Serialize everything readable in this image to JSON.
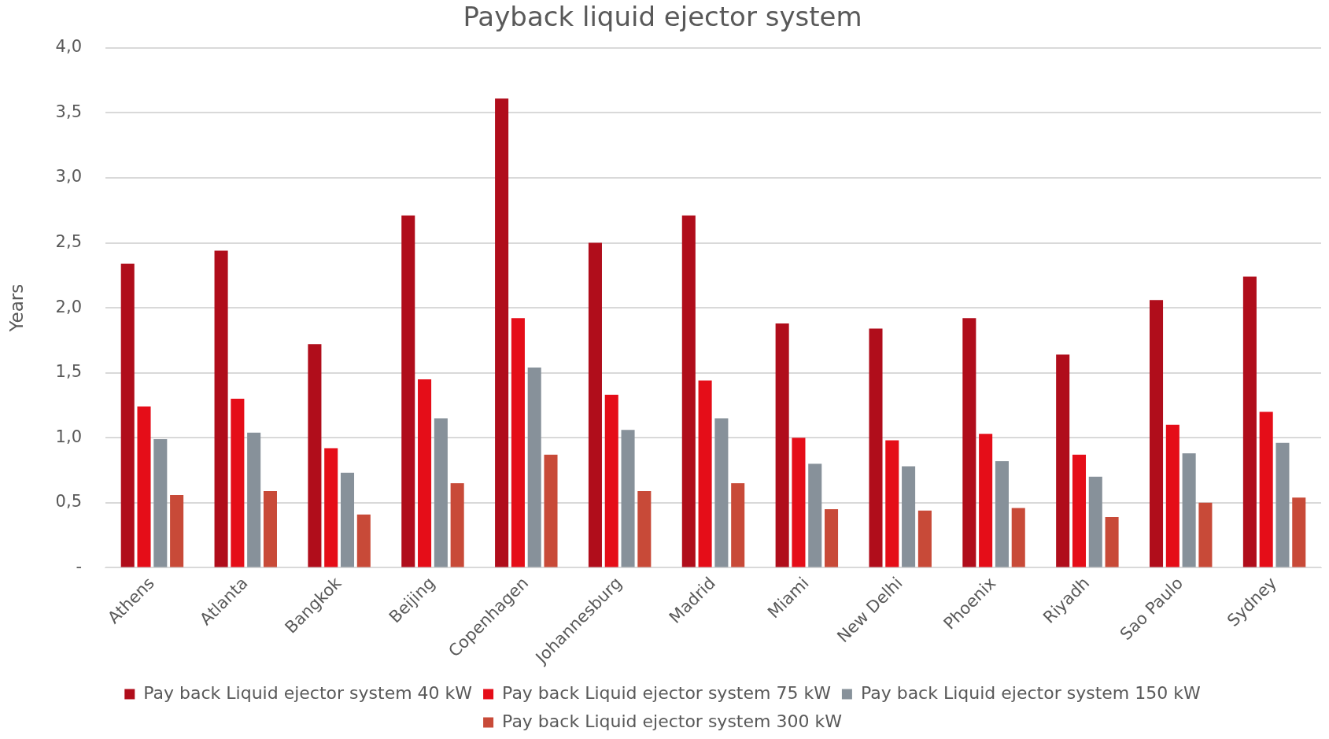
{
  "chart_data": {
    "type": "bar",
    "title": "Payback liquid ejector system",
    "ylabel": "Years",
    "categories": [
      "Athens",
      "Atlanta",
      "Bangkok",
      "Beijing",
      "Copenhagen",
      "Johannesburg",
      "Madrid",
      "Miami",
      "New Delhi",
      "Phoenix",
      "Riyadh",
      "Sao Paulo",
      "Sydney"
    ],
    "series": [
      {
        "name": "Pay back Liquid ejector system 40 kW",
        "color": "#b00d1b",
        "values": [
          2.34,
          2.44,
          1.72,
          2.71,
          3.61,
          2.5,
          2.71,
          1.88,
          1.84,
          1.92,
          1.64,
          2.06,
          2.24
        ]
      },
      {
        "name": "Pay back Liquid ejector system 75 kW",
        "color": "#e50d18",
        "values": [
          1.24,
          1.3,
          0.92,
          1.45,
          1.92,
          1.33,
          1.44,
          1.0,
          0.98,
          1.03,
          0.87,
          1.1,
          1.2
        ]
      },
      {
        "name": "Pay back Liquid ejector system 150 kW",
        "color": "#87919a",
        "values": [
          0.99,
          1.04,
          0.73,
          1.15,
          1.54,
          1.06,
          1.15,
          0.8,
          0.78,
          0.82,
          0.7,
          0.88,
          0.96
        ]
      },
      {
        "name": "Pay back Liquid ejector system 300 kW",
        "color": "#c84a38",
        "values": [
          0.56,
          0.59,
          0.41,
          0.65,
          0.87,
          0.59,
          0.65,
          0.45,
          0.44,
          0.46,
          0.39,
          0.5,
          0.54
        ]
      }
    ],
    "ylim": [
      0,
      4
    ],
    "yticks": [
      {
        "value": 0,
        "label": "-"
      },
      {
        "value": 0.5,
        "label": "0,5"
      },
      {
        "value": 1,
        "label": "1,0"
      },
      {
        "value": 1.5,
        "label": "1,5"
      },
      {
        "value": 2,
        "label": "2,0"
      },
      {
        "value": 2.5,
        "label": "2,5"
      },
      {
        "value": 3,
        "label": "3,0"
      },
      {
        "value": 3.5,
        "label": "3,5"
      },
      {
        "value": 4,
        "label": "4,0"
      }
    ],
    "grid": "y",
    "legend": "bottom"
  }
}
